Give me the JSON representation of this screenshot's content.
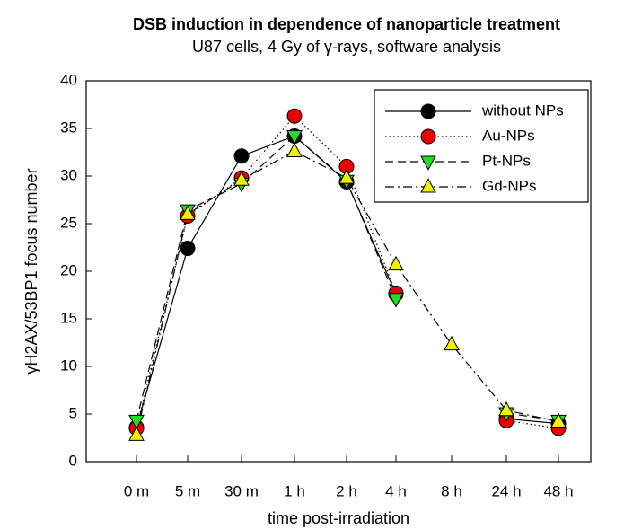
{
  "chart_data": {
    "type": "line",
    "title": "DSB induction in dependence of nanoparticle treatment",
    "subtitle": "U87 cells, 4 Gy of γ-rays, software analysis",
    "x_label": "time post-irradiation",
    "y_label": "γH2AX/53BP1 focus number",
    "categories": [
      "0 m",
      "5 m",
      "30 m",
      "1 h",
      "2 h",
      "4 h",
      "8 h",
      "24 h",
      "48 h"
    ],
    "series": [
      {
        "name": "without NPs",
        "color": "#000000",
        "marker": "circle",
        "dash": "solid",
        "values": [
          3.6,
          22.4,
          32.1,
          34.2,
          29.4,
          17.6,
          null,
          4.5,
          4.0
        ]
      },
      {
        "name": "Au-NPs",
        "color": "#e80000",
        "marker": "circle",
        "dash": "dotted",
        "values": [
          3.5,
          25.8,
          29.8,
          36.3,
          31.0,
          17.7,
          null,
          4.3,
          3.5
        ]
      },
      {
        "name": "Pt-NPs",
        "color": "#22dd22",
        "marker": "triangle-down",
        "dash": "dashed",
        "values": [
          4.3,
          26.4,
          29.2,
          34.2,
          29.5,
          17.1,
          null,
          5.1,
          4.3
        ]
      },
      {
        "name": "Gd-NPs",
        "color": "#f0f000",
        "marker": "triangle-up",
        "dash": "dashdot",
        "values": [
          2.8,
          26.0,
          29.6,
          32.6,
          29.8,
          20.7,
          12.3,
          5.4,
          4.2
        ]
      }
    ],
    "ylim": [
      0,
      40
    ],
    "yticks": [
      0,
      5,
      10,
      15,
      20,
      25,
      30,
      35,
      40
    ],
    "legend": "upper right",
    "grid": false
  }
}
